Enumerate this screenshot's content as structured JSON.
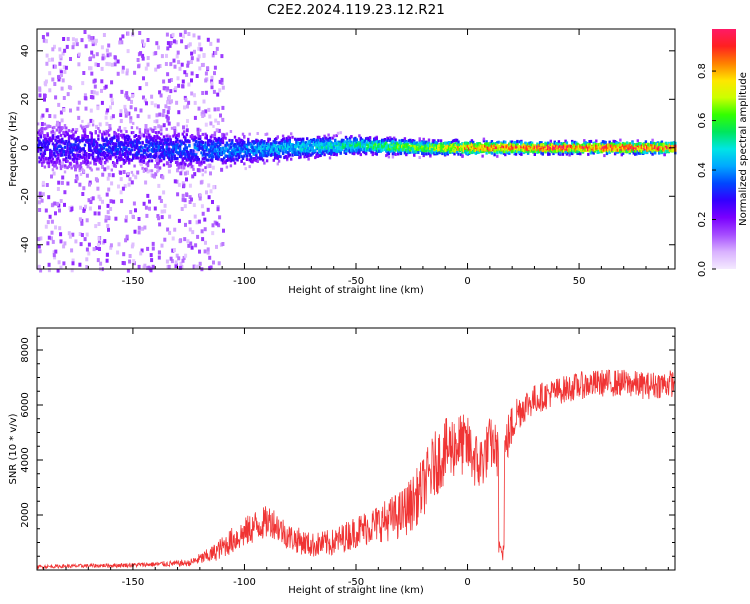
{
  "title": "C2E2.2024.119.23.12.R21",
  "colors": {
    "snr_line": "#f03434",
    "colormap": [
      "#f4eaff",
      "#d9b2ff",
      "#a64dff",
      "#7a00ff",
      "#3300ff",
      "#0047ff",
      "#00a8ff",
      "#00e5e5",
      "#00e65c",
      "#33ff00",
      "#ccff00",
      "#ffe600",
      "#ff8000",
      "#ff2020",
      "#ff1a66"
    ]
  },
  "chart_data": [
    {
      "type": "heatmap",
      "xlabel": "Height of straight line (km)",
      "ylabel": "Frequency (Hz)",
      "xlim": [
        -193,
        93
      ],
      "ylim": [
        -50,
        49
      ],
      "xticks": [
        -150,
        -100,
        -50,
        0,
        50
      ],
      "xtick_labels": [
        "-150",
        "-100",
        "-50",
        "0",
        "50"
      ],
      "yticks": [
        -40,
        -20,
        0,
        20,
        40
      ],
      "ytick_labels": [
        "-40",
        "-20",
        "0",
        "20",
        "40"
      ],
      "colorbar": {
        "label": "Normalized spectral amplitude",
        "range": [
          0,
          0.97
        ],
        "ticks": [
          0.0,
          0.2,
          0.4,
          0.6,
          0.8
        ],
        "tick_labels": [
          "0.0",
          "0.2",
          "0.4",
          "0.6",
          "0.8"
        ]
      },
      "ridge": {
        "description_points": [
          {
            "x": -190,
            "center": 0,
            "spread_hz": 10,
            "amplitude": 0.3
          },
          {
            "x": -150,
            "center": 0,
            "spread_hz": 9,
            "amplitude": 0.33
          },
          {
            "x": -120,
            "center": -1,
            "spread_hz": 8,
            "amplitude": 0.38
          },
          {
            "x": -100,
            "center": -1,
            "spread_hz": 6,
            "amplitude": 0.42
          },
          {
            "x": -80,
            "center": 0,
            "spread_hz": 5,
            "amplitude": 0.48
          },
          {
            "x": -50,
            "center": 1,
            "spread_hz": 4,
            "amplitude": 0.55
          },
          {
            "x": -20,
            "center": 0,
            "spread_hz": 3,
            "amplitude": 0.7
          },
          {
            "x": 0,
            "center": 0,
            "spread_hz": 3,
            "amplitude": 0.85
          },
          {
            "x": 30,
            "center": 0,
            "spread_hz": 2.5,
            "amplitude": 0.93
          },
          {
            "x": 60,
            "center": 0,
            "spread_hz": 2.5,
            "amplitude": 0.95
          },
          {
            "x": 93,
            "center": 0,
            "spread_hz": 2.5,
            "amplitude": 0.95
          }
        ],
        "scatter_region": {
          "x_range": [
            -193,
            -110
          ],
          "amplitude": 0.12
        }
      }
    },
    {
      "type": "line",
      "xlabel": "Height of straight line (km)",
      "ylabel": "SNR (10 * v/v)",
      "xlim": [
        -193,
        93
      ],
      "ylim": [
        0,
        8800
      ],
      "xticks": [
        -150,
        -100,
        -50,
        0,
        50
      ],
      "xtick_labels": [
        "-150",
        "-100",
        "-50",
        "0",
        "50"
      ],
      "yticks": [
        2000,
        4000,
        6000,
        8000
      ],
      "ytick_labels": [
        "2000",
        "4000",
        "6000",
        "8000"
      ],
      "series": [
        {
          "x": [
            -193,
            -150,
            -125,
            -115,
            -105,
            -95,
            -88,
            -80,
            -70,
            -60,
            -50,
            -40,
            -30,
            -25,
            -20,
            -15,
            -10,
            -5,
            0,
            5,
            8,
            10,
            13,
            15,
            18,
            22,
            26,
            30,
            40,
            50,
            60,
            70,
            80,
            93
          ],
          "y": [
            120,
            180,
            250,
            550,
            1100,
            1600,
            1800,
            1200,
            900,
            1000,
            1400,
            1700,
            2000,
            2400,
            3000,
            3800,
            4300,
            4600,
            4500,
            3800,
            4200,
            4600,
            4400,
            3600,
            4800,
            5700,
            6000,
            6200,
            6500,
            6700,
            6800,
            6800,
            6700,
            6800
          ],
          "noise": [
            60,
            80,
            120,
            300,
            500,
            600,
            600,
            500,
            450,
            500,
            600,
            700,
            900,
            1000,
            1100,
            1200,
            1200,
            1200,
            1100,
            1100,
            1000,
            1000,
            900,
            1000,
            900,
            700,
            600,
            550,
            500,
            500,
            500,
            500,
            500,
            500
          ]
        }
      ]
    }
  ]
}
